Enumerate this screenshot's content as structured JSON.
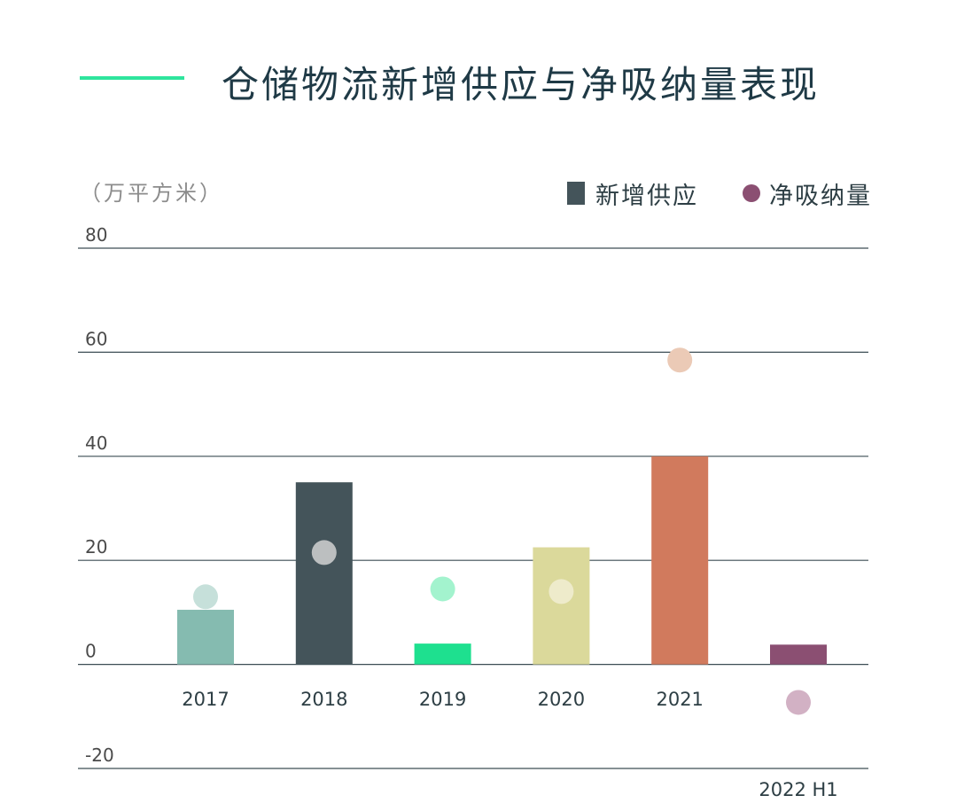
{
  "title": "仓储物流新增供应与净吸纳量表现",
  "unit_label": "（万平方米）",
  "legend": {
    "supply_label": "新增供应",
    "absorption_label": "净吸纳量"
  },
  "colors": {
    "title_accent": "#2ee59d",
    "legend_supply": "#44545a",
    "legend_absorption": "#8b4f72",
    "gridline": "#3d4e55"
  },
  "chart_data": {
    "type": "bar",
    "categories": [
      "2017",
      "2018",
      "2019",
      "2020",
      "2021",
      "2022 H1"
    ],
    "series": [
      {
        "name": "新增供应",
        "type": "bar",
        "values": [
          10.5,
          35,
          4,
          22.5,
          40,
          3.8
        ],
        "colors": [
          "#85bbb0",
          "#44545a",
          "#1ee08f",
          "#dbd99b",
          "#d17a5d",
          "#8b4f72"
        ]
      },
      {
        "name": "净吸纳量",
        "type": "scatter",
        "values": [
          13,
          21.5,
          14.5,
          14,
          58.5,
          -7.3
        ],
        "colors": [
          "#c6e0da",
          "#bcbfc0",
          "#a3f3ce",
          "#eeebcb",
          "#ebcab6",
          "#d2b1c4"
        ]
      }
    ],
    "yticks": [
      -20,
      0,
      20,
      40,
      60,
      80
    ],
    "ylim": [
      -20,
      80
    ],
    "grid": true,
    "legend_position": "top-right"
  }
}
